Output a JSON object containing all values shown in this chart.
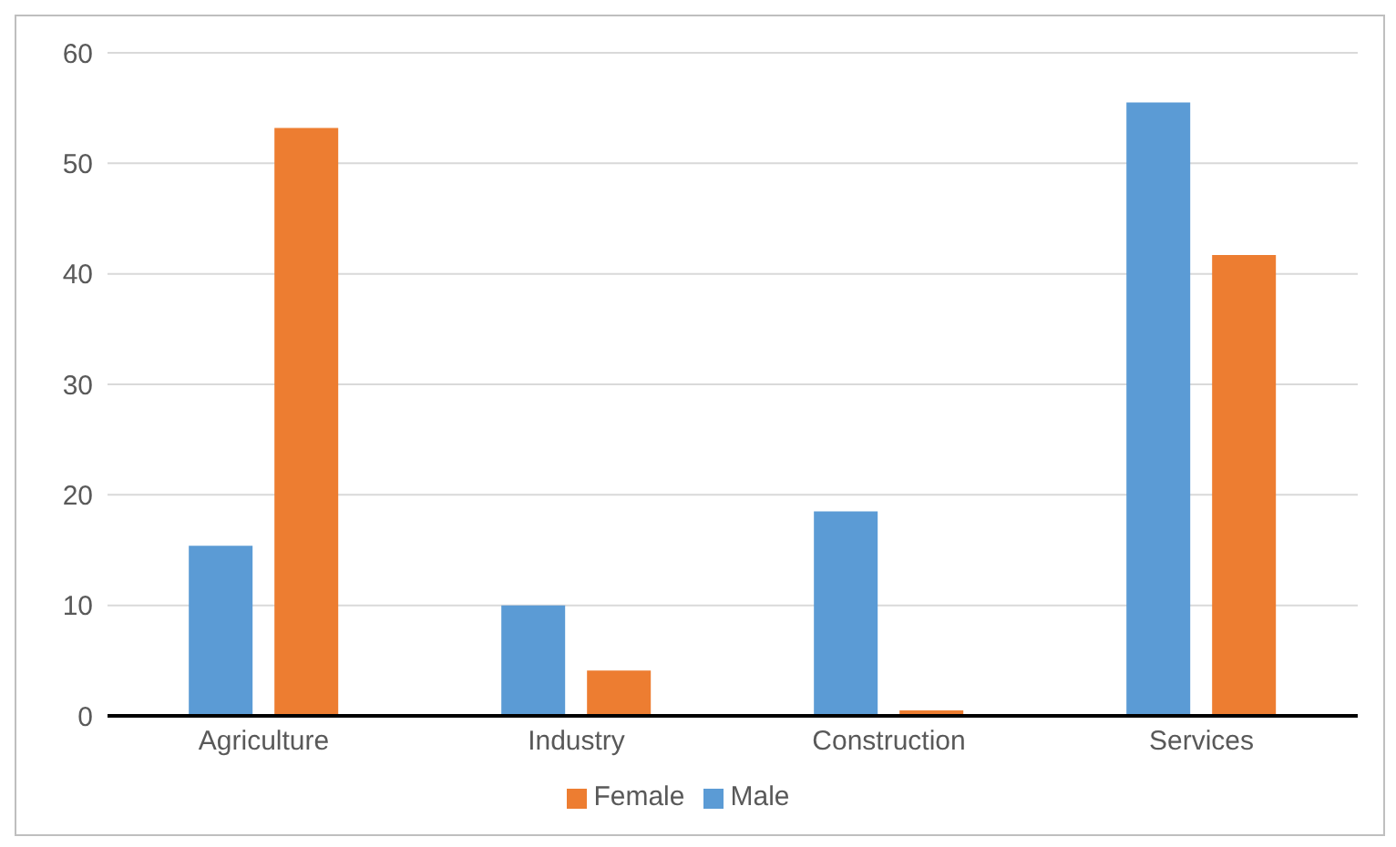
{
  "chart_data": {
    "type": "bar",
    "categories": [
      "Agriculture",
      "Industry",
      "Construction",
      "Services"
    ],
    "series": [
      {
        "name": "Male",
        "color": "#5b9bd5",
        "values": [
          15.4,
          10,
          18.5,
          55.5
        ]
      },
      {
        "name": "Female",
        "color": "#ed7d31",
        "values": [
          53.2,
          4.1,
          0.5,
          41.7
        ]
      }
    ],
    "ylim": [
      0,
      60
    ],
    "yticks": [
      0,
      10,
      20,
      30,
      40,
      50,
      60
    ],
    "grid": "y",
    "legend": "bottom"
  }
}
